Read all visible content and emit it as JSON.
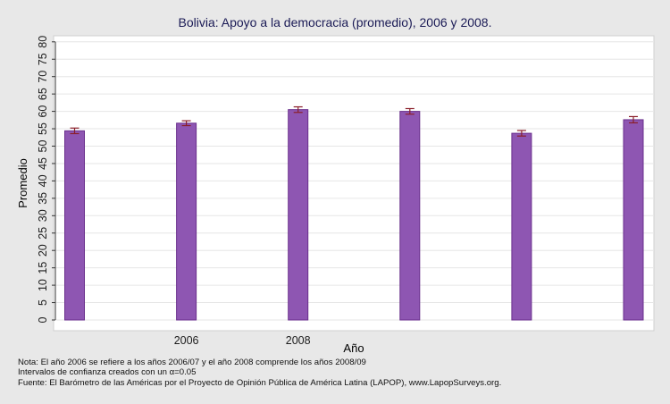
{
  "chart_data": {
    "type": "bar",
    "title": "Bolivia: Apoyo a la democracia (promedio), 2006 y 2008.",
    "xlabel": "Año",
    "ylabel": "Promedio",
    "ylim": [
      0,
      80
    ],
    "ytick_step": 5,
    "x_tick_labels": [
      "",
      "2006",
      "2008",
      "",
      "",
      ""
    ],
    "values": [
      54.4,
      56.6,
      60.5,
      60.0,
      53.7,
      57.6
    ],
    "ci_low": [
      53.6,
      55.9,
      59.7,
      59.2,
      52.9,
      56.7
    ],
    "ci_high": [
      55.2,
      57.3,
      61.3,
      60.8,
      54.5,
      58.5
    ],
    "grid": true,
    "legend": "none",
    "colors": {
      "bar_fill": "#8e56b2",
      "bar_stroke": "#6a2f8c",
      "error_bar": "#8b1f2a",
      "grid": "#e6e6e6",
      "plot_bg": "#ffffff",
      "outer_bg": "#e8e8e8"
    }
  },
  "notes": {
    "line1": "Nota: El año 2006 se refiere a los años 2006/07 y el año 2008 comprende los años 2008/09",
    "line2": "Intervalos de confianza creados con un α=0.05",
    "line3": "Fuente: El Barómetro de las Américas por el Proyecto de Opinión Pública de América Latina (LAPOP), www.LapopSurveys.org."
  }
}
